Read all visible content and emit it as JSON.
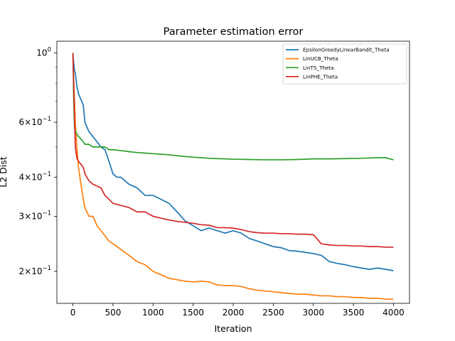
{
  "chart_data": {
    "type": "line",
    "title": "Parameter estimation error",
    "xlabel": "Iteration",
    "ylabel": "L2 Dist",
    "yscale": "log",
    "xlim": [
      -200,
      4200
    ],
    "ylim": [
      0.158,
      1.09
    ],
    "x_ticks": [
      0,
      500,
      1000,
      1500,
      2000,
      2500,
      3000,
      3500,
      4000
    ],
    "x_tick_labels": [
      "0",
      "500",
      "1000",
      "1500",
      "2000",
      "2500",
      "3000",
      "3500",
      "4000"
    ],
    "y_ticks": [
      {
        "value": 1.0,
        "base": "10",
        "exp": "0",
        "mant": ""
      },
      {
        "value": 0.6,
        "base": "10",
        "exp": "−1",
        "mant": "6×"
      },
      {
        "value": 0.4,
        "base": "10",
        "exp": "−1",
        "mant": "4×"
      },
      {
        "value": 0.3,
        "base": "10",
        "exp": "−1",
        "mant": "3×"
      },
      {
        "value": 0.2,
        "base": "10",
        "exp": "−1",
        "mant": "2×"
      }
    ],
    "grid": false,
    "legend_position": "top-right",
    "series": [
      {
        "name": "EpsilonGreedyLinearBandit_Theta",
        "color": "#1f77b4",
        "x": [
          0,
          5,
          10,
          20,
          30,
          50,
          70,
          100,
          130,
          150,
          200,
          250,
          300,
          350,
          400,
          450,
          500,
          550,
          600,
          700,
          800,
          900,
          1000,
          1100,
          1200,
          1300,
          1400,
          1500,
          1600,
          1700,
          1800,
          1900,
          2000,
          2100,
          2200,
          2300,
          2400,
          2500,
          2600,
          2700,
          2800,
          2900,
          3000,
          3100,
          3200,
          3300,
          3400,
          3500,
          3600,
          3700,
          3800,
          3900,
          4000
        ],
        "y": [
          1.0,
          0.96,
          0.93,
          0.88,
          0.86,
          0.78,
          0.74,
          0.71,
          0.68,
          0.6,
          0.56,
          0.54,
          0.52,
          0.5,
          0.49,
          0.45,
          0.41,
          0.4,
          0.4,
          0.38,
          0.37,
          0.35,
          0.35,
          0.34,
          0.33,
          0.31,
          0.29,
          0.28,
          0.27,
          0.275,
          0.27,
          0.265,
          0.27,
          0.265,
          0.255,
          0.25,
          0.245,
          0.24,
          0.238,
          0.233,
          0.232,
          0.23,
          0.228,
          0.225,
          0.215,
          0.212,
          0.21,
          0.207,
          0.205,
          0.203,
          0.205,
          0.203,
          0.201
        ]
      },
      {
        "name": "LinUCB_Theta",
        "color": "#ff7f0e",
        "x": [
          0,
          5,
          10,
          20,
          30,
          50,
          70,
          100,
          130,
          150,
          200,
          250,
          300,
          350,
          400,
          450,
          500,
          550,
          600,
          700,
          800,
          900,
          1000,
          1100,
          1200,
          1300,
          1400,
          1500,
          1600,
          1700,
          1800,
          1900,
          2000,
          2100,
          2200,
          2300,
          2400,
          2500,
          2600,
          2700,
          2800,
          2900,
          3000,
          3100,
          3200,
          3300,
          3400,
          3500,
          3600,
          3700,
          3800,
          3900,
          4000
        ],
        "y": [
          1.0,
          0.9,
          0.82,
          0.7,
          0.6,
          0.5,
          0.43,
          0.38,
          0.34,
          0.32,
          0.3,
          0.3,
          0.28,
          0.27,
          0.26,
          0.25,
          0.245,
          0.24,
          0.235,
          0.225,
          0.215,
          0.21,
          0.2,
          0.195,
          0.19,
          0.188,
          0.186,
          0.185,
          0.186,
          0.185,
          0.181,
          0.18,
          0.18,
          0.179,
          0.176,
          0.174,
          0.173,
          0.172,
          0.171,
          0.17,
          0.169,
          0.169,
          0.168,
          0.167,
          0.167,
          0.166,
          0.166,
          0.165,
          0.165,
          0.164,
          0.164,
          0.163,
          0.163
        ]
      },
      {
        "name": "LinTS_Theta",
        "color": "#2ca02c",
        "x": [
          0,
          5,
          10,
          20,
          30,
          50,
          70,
          100,
          130,
          150,
          200,
          250,
          300,
          350,
          400,
          450,
          500,
          600,
          700,
          800,
          900,
          1000,
          1100,
          1200,
          1300,
          1400,
          1500,
          1600,
          1700,
          1800,
          1900,
          2000,
          2200,
          2400,
          2600,
          2800,
          3000,
          3200,
          3400,
          3600,
          3800,
          3900,
          4000
        ],
        "y": [
          1.0,
          0.85,
          0.7,
          0.58,
          0.56,
          0.55,
          0.54,
          0.53,
          0.52,
          0.51,
          0.51,
          0.5,
          0.5,
          0.5,
          0.5,
          0.49,
          0.49,
          0.487,
          0.483,
          0.48,
          0.478,
          0.476,
          0.474,
          0.472,
          0.469,
          0.466,
          0.464,
          0.462,
          0.46,
          0.459,
          0.458,
          0.457,
          0.456,
          0.455,
          0.455,
          0.456,
          0.458,
          0.458,
          0.459,
          0.46,
          0.462,
          0.462,
          0.455
        ]
      },
      {
        "name": "LinPHE_Theta",
        "color": "#d62728",
        "x": [
          0,
          5,
          10,
          20,
          30,
          50,
          70,
          100,
          130,
          150,
          200,
          250,
          300,
          350,
          400,
          450,
          500,
          600,
          700,
          800,
          900,
          1000,
          1100,
          1200,
          1300,
          1400,
          1500,
          1600,
          1700,
          1800,
          1900,
          2000,
          2100,
          2200,
          2300,
          2400,
          2500,
          2600,
          2700,
          2800,
          2900,
          3000,
          3100,
          3200,
          3300,
          3400,
          3500,
          3600,
          3700,
          3800,
          3900,
          4000
        ],
        "y": [
          1.0,
          0.9,
          0.8,
          0.62,
          0.5,
          0.46,
          0.45,
          0.44,
          0.43,
          0.41,
          0.39,
          0.38,
          0.375,
          0.37,
          0.35,
          0.34,
          0.33,
          0.325,
          0.32,
          0.31,
          0.31,
          0.3,
          0.296,
          0.292,
          0.289,
          0.287,
          0.285,
          0.282,
          0.281,
          0.276,
          0.276,
          0.275,
          0.272,
          0.268,
          0.266,
          0.265,
          0.265,
          0.264,
          0.264,
          0.263,
          0.263,
          0.262,
          0.245,
          0.243,
          0.242,
          0.242,
          0.241,
          0.241,
          0.24,
          0.24,
          0.239,
          0.239
        ]
      }
    ]
  }
}
